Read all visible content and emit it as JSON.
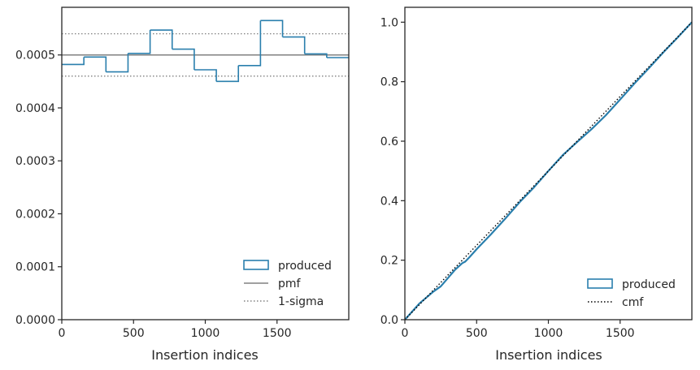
{
  "chart_data": [
    {
      "type": "step-histogram",
      "xlabel": "Insertion indices",
      "ylabel": "",
      "xlim": [
        0,
        2000
      ],
      "ylim": [
        0,
        0.00059
      ],
      "xticks": [
        0,
        500,
        1000,
        1500
      ],
      "xtick_labels": [
        "0",
        "500",
        "1000",
        "1500"
      ],
      "yticks": [
        0,
        0.0001,
        0.0002,
        0.0003,
        0.0004,
        0.0005
      ],
      "ytick_labels": [
        "0.0000",
        "0.0001",
        "0.0002",
        "0.0003",
        "0.0004",
        "0.0005"
      ],
      "bin_edges": [
        0,
        153.8,
        307.7,
        461.5,
        615.4,
        769.2,
        923.1,
        1076.9,
        1230.8,
        1384.6,
        1538.5,
        1692.3,
        1846.2,
        2000
      ],
      "values": [
        0.000482,
        0.000496,
        0.000468,
        0.000503,
        0.000547,
        0.000511,
        0.000472,
        0.00045,
        0.00048,
        0.000565,
        0.000534,
        0.000502,
        0.000495
      ],
      "pmf": 0.0005,
      "sigma_band": [
        0.00046,
        0.00054
      ],
      "colors": {
        "produced": "#2a7fad",
        "pmf": "#808080",
        "sigma": "#808080"
      },
      "legend": {
        "placement": "lower-right",
        "entries": [
          {
            "label": "produced",
            "style": "box"
          },
          {
            "label": "pmf",
            "style": "solid"
          },
          {
            "label": "1-sigma",
            "style": "dotted"
          }
        ]
      }
    },
    {
      "type": "line",
      "xlabel": "Insertion indices",
      "ylabel": "",
      "xlim": [
        0,
        2000
      ],
      "ylim": [
        0,
        1.05
      ],
      "xticks": [
        0,
        500,
        1000,
        1500
      ],
      "xtick_labels": [
        "0",
        "500",
        "1000",
        "1500"
      ],
      "yticks": [
        0,
        0.2,
        0.4,
        0.6,
        0.8,
        1.0
      ],
      "ytick_labels": [
        "0.0",
        "0.2",
        "0.4",
        "0.6",
        "0.8",
        "1.0"
      ],
      "series": [
        {
          "name": "produced",
          "x": [
            0,
            100,
            200,
            250,
            300,
            350,
            400,
            420,
            450,
            500,
            600,
            700,
            800,
            900,
            1000,
            1100,
            1200,
            1300,
            1400,
            1500,
            1600,
            1700,
            1800,
            1900,
            2000
          ],
          "y": [
            0,
            0.054,
            0.095,
            0.112,
            0.14,
            0.168,
            0.19,
            0.195,
            0.21,
            0.237,
            0.287,
            0.34,
            0.395,
            0.445,
            0.5,
            0.553,
            0.597,
            0.64,
            0.687,
            0.74,
            0.794,
            0.845,
            0.898,
            0.948,
            1.0
          ]
        },
        {
          "name": "cmf",
          "x": [
            0,
            2000
          ],
          "y": [
            0,
            1.0
          ]
        }
      ],
      "colors": {
        "produced": "#2a7fad",
        "cmf": "#000000"
      },
      "legend": {
        "placement": "lower-right",
        "entries": [
          {
            "label": "produced",
            "style": "box"
          },
          {
            "label": "cmf",
            "style": "dotted"
          }
        ]
      }
    }
  ]
}
